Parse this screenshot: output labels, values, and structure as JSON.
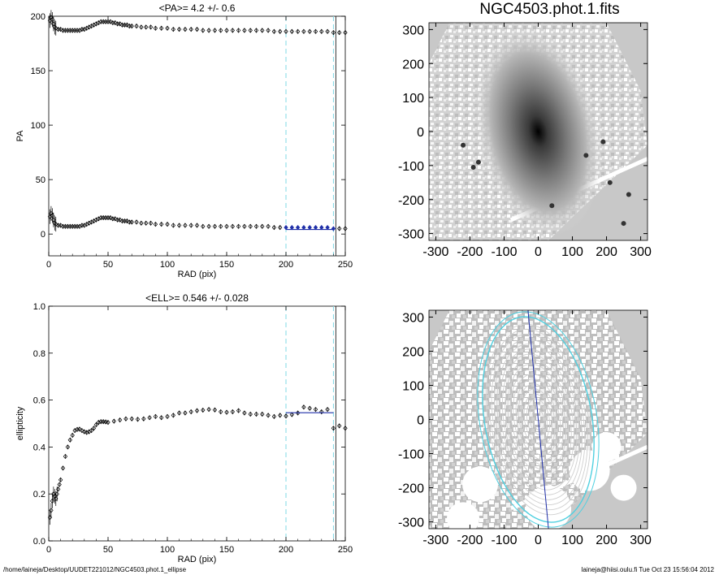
{
  "colors": {
    "guide": "#7fd8e6",
    "fit": "#1f2fa8",
    "contour": "#cfcfcf",
    "contour_outer": "#4fd0e0",
    "image_bg": "#c8c8c8",
    "axis": "#000000"
  },
  "footer": {
    "left": "/home/laineja/Desktop/UUDET221012/NGC4503.phot.1_ellipse",
    "right": "laineja@hiisi.oulu.fi  Tue Oct 23 15:56:04 2012"
  },
  "chart_data": [
    {
      "type": "scatter",
      "panel": "pa",
      "title": "<PA>=   4.2 +/-   0.6",
      "xlabel": "RAD (pix)",
      "ylabel": "PA",
      "xlim": [
        0,
        250
      ],
      "ylim": [
        -20,
        200
      ],
      "xticks": [
        0,
        50,
        100,
        150,
        200,
        250
      ],
      "yticks": [
        0,
        50,
        100,
        150,
        200
      ],
      "guides_x": [
        200,
        240
      ],
      "series": [
        {
          "x": [
            1,
            2,
            3,
            4,
            5,
            6,
            8,
            10,
            12,
            14,
            16,
            18,
            20,
            22,
            24,
            26,
            28,
            30,
            32,
            34,
            36,
            38,
            40,
            42,
            44,
            46,
            48,
            50,
            52,
            54,
            56,
            58,
            60,
            62,
            64,
            66,
            68,
            70,
            74,
            78,
            82,
            86,
            90,
            95,
            100,
            105,
            110,
            115,
            120,
            125,
            130,
            135,
            140,
            145,
            150,
            155,
            160,
            165,
            170,
            175,
            180,
            185,
            190,
            195,
            200,
            205,
            210,
            215,
            220,
            225,
            230,
            235,
            240,
            245,
            250
          ],
          "y": [
            196,
            199,
            197,
            193,
            190,
            189,
            188,
            188,
            187,
            187,
            187,
            187,
            187,
            187,
            187,
            187,
            188,
            188,
            189,
            190,
            191,
            192,
            193,
            194,
            195,
            195,
            195,
            195,
            195,
            194,
            194,
            193,
            193,
            192,
            192,
            192,
            191,
            191,
            191,
            190,
            190,
            190,
            189,
            189,
            189,
            188,
            188,
            188,
            188,
            188,
            187,
            187,
            187,
            187,
            187,
            187,
            187,
            187,
            187,
            187,
            187,
            187,
            186,
            186,
            186,
            186,
            186,
            186,
            186,
            186,
            186,
            186,
            185,
            185,
            185
          ]
        },
        {
          "x": [
            1,
            2,
            3,
            4,
            5,
            6,
            8,
            10,
            12,
            14,
            16,
            18,
            20,
            22,
            24,
            26,
            28,
            30,
            32,
            34,
            36,
            38,
            40,
            42,
            44,
            46,
            48,
            50,
            52,
            54,
            56,
            58,
            60,
            62,
            64,
            66,
            68,
            70,
            74,
            78,
            82,
            86,
            90,
            95,
            100,
            105,
            110,
            115,
            120,
            125,
            130,
            135,
            140,
            145,
            150,
            155,
            160,
            165,
            170,
            175,
            180,
            185,
            190,
            195,
            200,
            205,
            210,
            215,
            220,
            225,
            230,
            235,
            240,
            245,
            250
          ],
          "y": [
            16,
            19,
            17,
            13,
            10,
            9,
            8,
            8,
            7,
            7,
            7,
            7,
            7,
            7,
            7,
            7,
            8,
            8,
            9,
            10,
            11,
            12,
            13,
            14,
            15,
            15,
            15,
            15,
            15,
            14,
            14,
            13,
            13,
            12,
            12,
            12,
            11,
            11,
            11,
            10,
            10,
            10,
            9,
            9,
            9,
            8,
            8,
            8,
            8,
            8,
            7,
            7,
            7,
            7,
            7,
            7,
            7,
            7,
            7,
            7,
            7,
            7,
            6,
            6,
            6,
            6,
            6,
            6,
            6,
            6,
            6,
            6,
            5,
            5,
            5
          ]
        }
      ],
      "fit": {
        "x": [
          200,
          240
        ],
        "y": 4.2
      }
    },
    {
      "type": "scatter",
      "panel": "ell",
      "title": "<ELL>= 0.546 +/-  0.028",
      "xlabel": "RAD (pix)",
      "ylabel": "ellipticity",
      "xlim": [
        0,
        250
      ],
      "ylim": [
        0.0,
        1.0
      ],
      "xticks": [
        0,
        50,
        100,
        150,
        200,
        250
      ],
      "yticks": [
        0.0,
        0.2,
        0.4,
        0.6,
        0.8,
        1.0
      ],
      "ytick_labels": [
        "0.0",
        "0.2",
        "0.4",
        "0.6",
        "0.8",
        "1.0"
      ],
      "guides_x": [
        200,
        240
      ],
      "series": [
        {
          "x": [
            1,
            2,
            3,
            4,
            5,
            6,
            7,
            8,
            9,
            10,
            12,
            14,
            16,
            18,
            20,
            22,
            24,
            26,
            28,
            30,
            32,
            34,
            36,
            38,
            40,
            42,
            44,
            46,
            48,
            50,
            55,
            60,
            65,
            70,
            75,
            80,
            85,
            90,
            95,
            100,
            105,
            110,
            115,
            120,
            125,
            130,
            135,
            140,
            145,
            150,
            155,
            160,
            165,
            170,
            175,
            180,
            185,
            190,
            195,
            200,
            205,
            210,
            215,
            220,
            225,
            230,
            235,
            240,
            245,
            250
          ],
          "y": [
            0.1,
            0.13,
            0.17,
            0.2,
            0.19,
            0.18,
            0.2,
            0.22,
            0.24,
            0.26,
            0.31,
            0.36,
            0.4,
            0.43,
            0.45,
            0.47,
            0.475,
            0.476,
            0.47,
            0.465,
            0.462,
            0.465,
            0.47,
            0.48,
            0.495,
            0.505,
            0.508,
            0.508,
            0.507,
            0.505,
            0.51,
            0.515,
            0.52,
            0.52,
            0.518,
            0.52,
            0.525,
            0.53,
            0.525,
            0.53,
            0.535,
            0.545,
            0.545,
            0.55,
            0.555,
            0.557,
            0.56,
            0.558,
            0.55,
            0.548,
            0.55,
            0.555,
            0.545,
            0.54,
            0.54,
            0.54,
            0.535,
            0.53,
            0.535,
            0.532,
            0.538,
            0.545,
            0.57,
            0.565,
            0.56,
            0.55,
            0.56,
            0.48,
            0.49,
            0.48
          ]
        }
      ],
      "fit": {
        "x": [
          200,
          240
        ],
        "y": 0.546
      }
    }
  ],
  "images": [
    {
      "title": "NGC4503.phot.1.fits",
      "xlim": [
        -320,
        320
      ],
      "ylim": [
        -320,
        320
      ],
      "xticks": [
        -300,
        -200,
        -100,
        0,
        100,
        200,
        300
      ],
      "yticks": [
        -300,
        -200,
        -100,
        0,
        100,
        200,
        300
      ],
      "contours": false
    },
    {
      "title": "",
      "xlim": [
        -320,
        320
      ],
      "ylim": [
        -320,
        320
      ],
      "xticks": [
        -300,
        -200,
        -100,
        0,
        100,
        200,
        300
      ],
      "yticks": [
        -300,
        -200,
        -100,
        0,
        100,
        200,
        300
      ],
      "contours": true
    }
  ]
}
